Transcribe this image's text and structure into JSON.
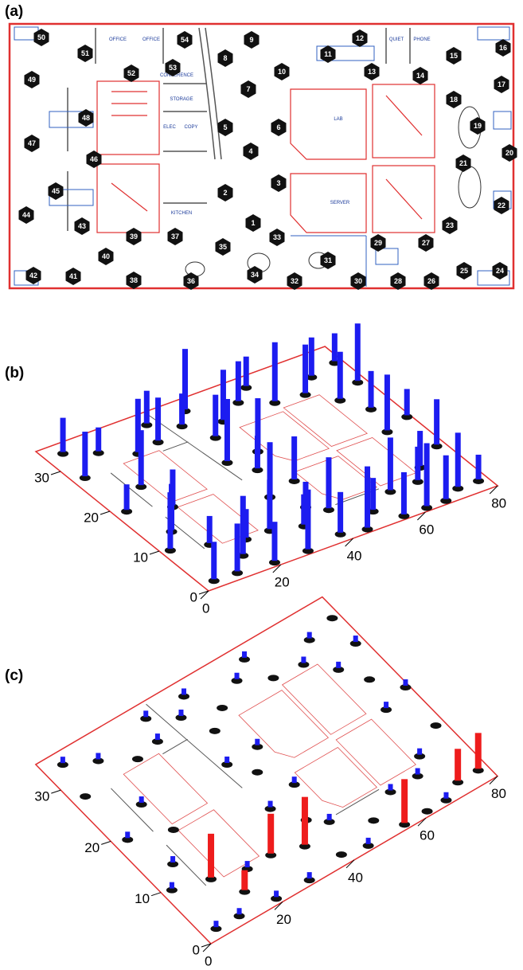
{
  "panels": [
    {
      "label": "(a)",
      "nodes": [
        1,
        2,
        3,
        4,
        5,
        6,
        7,
        8,
        9,
        10,
        11,
        12,
        13,
        14,
        15,
        16,
        17,
        18,
        19,
        20,
        21,
        22,
        23,
        24,
        25,
        26,
        27,
        28,
        29,
        30,
        31,
        32,
        33,
        34,
        35,
        36,
        37,
        38,
        39,
        40,
        41,
        42,
        43,
        44,
        45,
        46,
        47,
        48,
        49,
        50,
        51,
        52,
        53,
        54
      ],
      "rooms": [
        "OFFICE",
        "OFFICE",
        "CONFERENCE",
        "STORAGE",
        "ELEC",
        "COPY",
        "KITCHEN",
        "LAB",
        "SERVER",
        "QUIET",
        "PHONE"
      ]
    },
    {
      "label": "(b)",
      "xticks": [
        0,
        20,
        40,
        60,
        80
      ],
      "yticks": [
        0,
        10,
        20,
        30
      ]
    },
    {
      "label": "(c)",
      "xticks": [
        0,
        20,
        40,
        60,
        80
      ],
      "yticks": [
        0,
        10,
        20,
        30
      ]
    }
  ]
}
